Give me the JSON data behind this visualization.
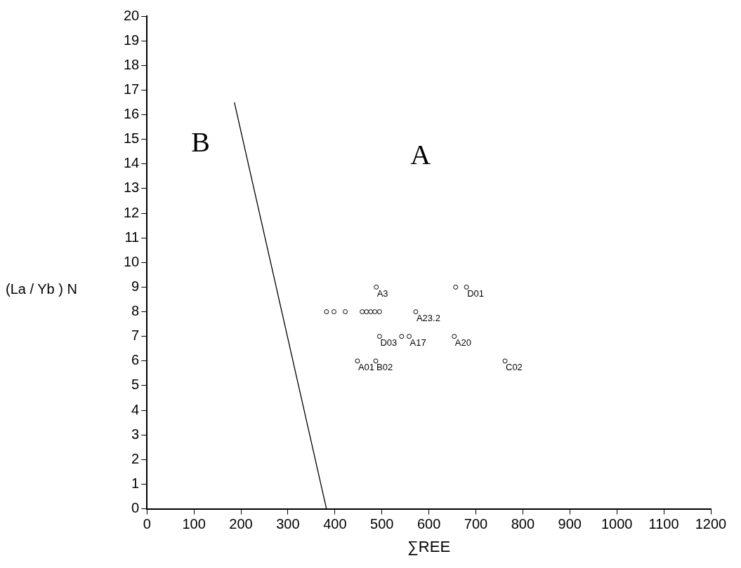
{
  "chart_data": {
    "type": "scatter",
    "xlabel": "∑REE",
    "ylabel": "(La / Yb ) N",
    "series": [
      {
        "color": "#000000",
        "marker": "circle",
        "x": [
          488,
          382,
          398,
          422,
          458,
          467,
          476,
          485,
          495,
          572,
          495,
          542,
          558,
          448,
          487,
          657,
          680,
          654,
          762
        ],
        "values": [
          9,
          8,
          8,
          8,
          8,
          8,
          8,
          8,
          8,
          8,
          7,
          7,
          7,
          6,
          6,
          9,
          9,
          7,
          6
        ]
      },
      {
        "type": "line",
        "color": "#000000",
        "marker": "none",
        "line_style": "solid",
        "x": [
          186,
          382
        ],
        "values": [
          16.5,
          0
        ]
      }
    ],
    "xlim": [
      0,
      1200
    ],
    "xticks": [
      0,
      100,
      200,
      300,
      400,
      500,
      600,
      700,
      800,
      900,
      1000,
      1100,
      1200
    ],
    "ylim": [
      0,
      20
    ],
    "yticks": [
      0,
      1,
      2,
      3,
      4,
      5,
      6,
      7,
      8,
      9,
      10,
      11,
      12,
      13,
      14,
      15,
      16,
      17,
      18,
      19,
      20
    ],
    "grid": false,
    "legend": false,
    "annotations": [
      {
        "text": "A3",
        "x": 488,
        "y": 9
      },
      {
        "text": "A23.2",
        "x": 572,
        "y": 8
      },
      {
        "text": "D03",
        "x": 495,
        "y": 7
      },
      {
        "text": "A17",
        "x": 558,
        "y": 7
      },
      {
        "text": "A20",
        "x": 654,
        "y": 7
      },
      {
        "text": "A01",
        "x": 448,
        "y": 6
      },
      {
        "text": "B02",
        "x": 487,
        "y": 6
      },
      {
        "text": "C02",
        "x": 762,
        "y": 6
      },
      {
        "text": "D01",
        "x": 680,
        "y": 9
      },
      "B",
      "A"
    ]
  }
}
